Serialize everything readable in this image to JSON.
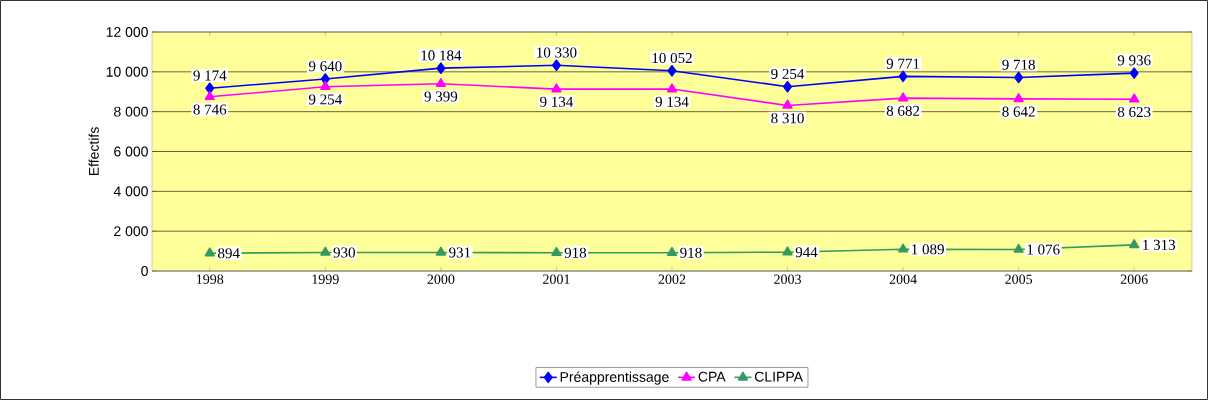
{
  "chart_data": {
    "type": "line",
    "ylabel": "Effectifs",
    "categories": [
      "1998",
      "1999",
      "2000",
      "2001",
      "2002",
      "2003",
      "2004",
      "2005",
      "2006"
    ],
    "series": [
      {
        "name": "Préapprentissage",
        "color": "#0000ff",
        "marker": "diamond",
        "values": [
          9174,
          9640,
          10184,
          10330,
          10052,
          9254,
          9771,
          9718,
          9936
        ],
        "value_labels": [
          "9 174",
          "9 640",
          "10 184",
          "10 330",
          "10 052",
          "9 254",
          "9 771",
          "9 718",
          "9 936"
        ]
      },
      {
        "name": "CPA",
        "color": "#ff00ff",
        "marker": "triangle",
        "values": [
          8746,
          9254,
          9399,
          9134,
          9134,
          8310,
          8682,
          8642,
          8623
        ],
        "value_labels": [
          "8 746",
          "9 254",
          "9 399",
          "9 134",
          "9 134",
          "8 310",
          "8 682",
          "8 642",
          "8 623"
        ]
      },
      {
        "name": "CLIPPA",
        "color": "#339966",
        "marker": "triangle",
        "values": [
          894,
          930,
          931,
          918,
          918,
          944,
          1089,
          1076,
          1313
        ],
        "value_labels": [
          "894",
          "930",
          "931",
          "918",
          "918",
          "944",
          "1 089",
          "1 076",
          "1 313"
        ]
      }
    ],
    "ylim": [
      0,
      12000
    ],
    "yticks": [
      {
        "value": 0,
        "label": "0"
      },
      {
        "value": 2000,
        "label": "2 000"
      },
      {
        "value": 4000,
        "label": "4 000"
      },
      {
        "value": 6000,
        "label": "6 000"
      },
      {
        "value": 8000,
        "label": "8 000"
      },
      {
        "value": 10000,
        "label": "10 000"
      },
      {
        "value": 12000,
        "label": "12 000"
      }
    ],
    "grid": "y",
    "legend": "bottom",
    "line_style": "solid"
  }
}
